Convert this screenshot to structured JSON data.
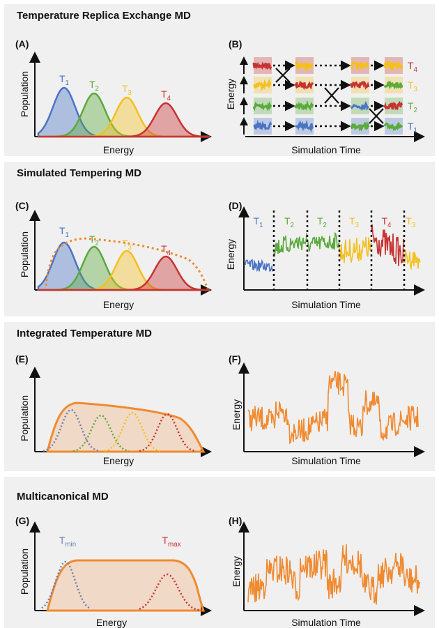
{
  "sections": [
    {
      "title": "Temperature Replica Exchange MD"
    },
    {
      "title": "Simulated Tempering MD"
    },
    {
      "title": "Integrated Temperature MD"
    },
    {
      "title": "Multicanonical MD"
    }
  ],
  "panels": {
    "A": {
      "label": "(A)",
      "ylabel": "Population",
      "xlabel": "Energy"
    },
    "B": {
      "label": "(B)",
      "ylabel": "Energy",
      "xlabel": "Simulation Time"
    },
    "C": {
      "label": "(C)",
      "ylabel": "Population",
      "xlabel": "Energy"
    },
    "D": {
      "label": "(D)",
      "ylabel": "Energy",
      "xlabel": "Simulation Time"
    },
    "E": {
      "label": "(E)",
      "ylabel": "Population",
      "xlabel": "Energy"
    },
    "F": {
      "label": "(F)",
      "ylabel": "Energy",
      "xlabel": "Simulation Time"
    },
    "G": {
      "label": "(G)",
      "ylabel": "Population",
      "xlabel": "Energy"
    },
    "H": {
      "label": "(H)",
      "ylabel": "Energy",
      "xlabel": "Simulation Time"
    }
  },
  "temps": [
    {
      "base": "T",
      "sub": "1",
      "color": "#4a74c4"
    },
    {
      "base": "T",
      "sub": "2",
      "color": "#5aaa3c"
    },
    {
      "base": "T",
      "sub": "3",
      "color": "#f4c020"
    },
    {
      "base": "T",
      "sub": "4",
      "color": "#c83232"
    }
  ],
  "panel_D_segments": [
    {
      "base": "T",
      "sub": "1",
      "color": "#4a74c4"
    },
    {
      "base": "T",
      "sub": "2",
      "color": "#5aaa3c"
    },
    {
      "base": "T",
      "sub": "2",
      "color": "#5aaa3c"
    },
    {
      "base": "T",
      "sub": "3",
      "color": "#f4c020"
    },
    {
      "base": "T",
      "sub": "4",
      "color": "#c83232"
    },
    {
      "base": "T",
      "sub": "3",
      "color": "#f4c020"
    }
  ],
  "panel_G_labels": {
    "tmin": {
      "base": "T",
      "sub": "min",
      "color": "#6f7fb0"
    },
    "tmax": {
      "base": "T",
      "sub": "max",
      "color": "#c83232"
    }
  },
  "colors": {
    "orange": "#f08a30",
    "axis": "#111111",
    "panel_bg": "#f0f0f0"
  }
}
